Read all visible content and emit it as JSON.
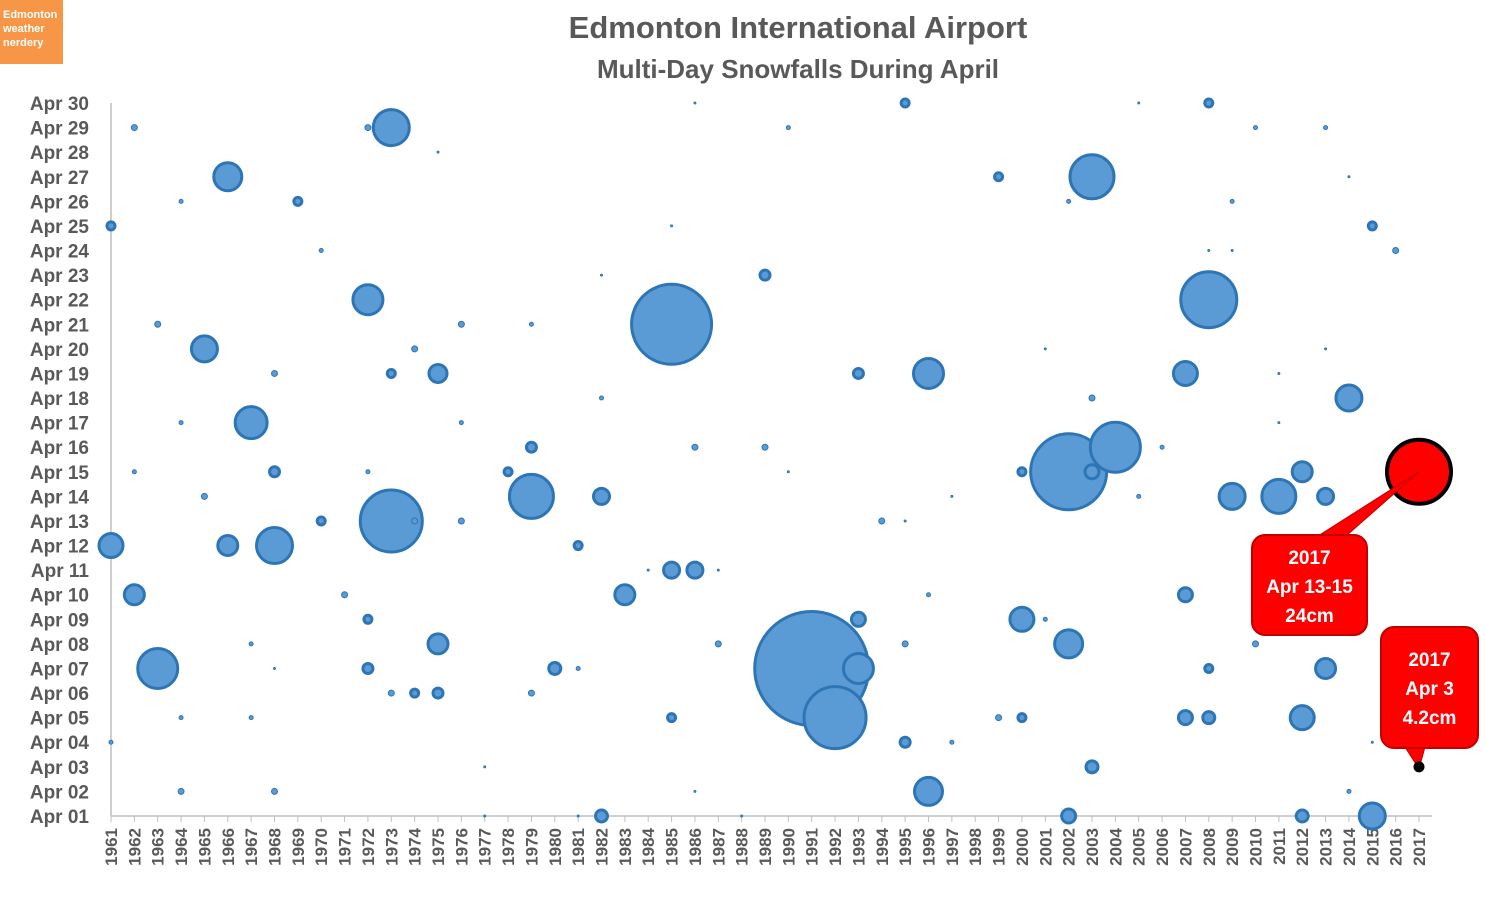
{
  "badge": {
    "lines": [
      "Edmonton",
      "weather",
      "nerdery"
    ],
    "color": "#f79646"
  },
  "chart_data": {
    "type": "bubble",
    "title": "Edmonton International Airport",
    "subtitle": "Multi-Day Snowfalls During April",
    "xlabel": "",
    "ylabel": "",
    "x_categories": [
      "1961",
      "1962",
      "1963",
      "1964",
      "1965",
      "1966",
      "1967",
      "1968",
      "1969",
      "1970",
      "1971",
      "1972",
      "1973",
      "1974",
      "1975",
      "1976",
      "1977",
      "1978",
      "1979",
      "1980",
      "1981",
      "1982",
      "1983",
      "1984",
      "1985",
      "1986",
      "1987",
      "1988",
      "1989",
      "1990",
      "1991",
      "1992",
      "1993",
      "1994",
      "1995",
      "1996",
      "1997",
      "1998",
      "1999",
      "2000",
      "2001",
      "2002",
      "2003",
      "2004",
      "2005",
      "2006",
      "2007",
      "2008",
      "2009",
      "2010",
      "2011",
      "2012",
      "2013",
      "2014",
      "2015",
      "2016",
      "2017"
    ],
    "y_categories": [
      "Apr 01",
      "Apr 02",
      "Apr 03",
      "Apr 04",
      "Apr 05",
      "Apr 06",
      "Apr 07",
      "Apr 08",
      "Apr 09",
      "Apr 10",
      "Apr 11",
      "Apr 12",
      "Apr 13",
      "Apr 14",
      "Apr 15",
      "Apr 16",
      "Apr 17",
      "Apr 18",
      "Apr 19",
      "Apr 20",
      "Apr 21",
      "Apr 22",
      "Apr 23",
      "Apr 24",
      "Apr 25",
      "Apr 26",
      "Apr 27",
      "Apr 28",
      "Apr 29",
      "Apr 30"
    ],
    "series_color": "#5b9bd5",
    "series_border": "#2e75b6",
    "highlight_color": "#ff0000",
    "bubble_note": "each point: [year, april_day, bubble_radius_px]",
    "points": [
      [
        1961,
        25,
        4
      ],
      [
        1961,
        12,
        12
      ],
      [
        1961,
        4,
        2
      ],
      [
        1962,
        29,
        3
      ],
      [
        1962,
        15,
        2
      ],
      [
        1962,
        10,
        10
      ],
      [
        1963,
        21,
        3
      ],
      [
        1963,
        7,
        20
      ],
      [
        1964,
        26,
        2
      ],
      [
        1964,
        17,
        2
      ],
      [
        1964,
        5,
        2
      ],
      [
        1964,
        2,
        3
      ],
      [
        1965,
        20,
        13
      ],
      [
        1965,
        14,
        3
      ],
      [
        1966,
        27,
        14
      ],
      [
        1966,
        12,
        10
      ],
      [
        1967,
        17,
        16
      ],
      [
        1967,
        8,
        2
      ],
      [
        1967,
        5,
        2
      ],
      [
        1968,
        19,
        3
      ],
      [
        1968,
        15,
        5
      ],
      [
        1968,
        12,
        18
      ],
      [
        1968,
        7,
        1
      ],
      [
        1968,
        2,
        3
      ],
      [
        1969,
        26,
        4
      ],
      [
        1970,
        24,
        2
      ],
      [
        1970,
        13,
        4
      ],
      [
        1971,
        10,
        3
      ],
      [
        1972,
        29,
        3
      ],
      [
        1972,
        22,
        15
      ],
      [
        1972,
        15,
        2
      ],
      [
        1972,
        9,
        4
      ],
      [
        1972,
        7,
        5
      ],
      [
        1973,
        29,
        18
      ],
      [
        1973,
        19,
        4
      ],
      [
        1973,
        13,
        31
      ],
      [
        1973,
        6,
        3
      ],
      [
        1974,
        20,
        3
      ],
      [
        1974,
        13,
        3
      ],
      [
        1974,
        6,
        4
      ],
      [
        1975,
        28,
        1
      ],
      [
        1975,
        19,
        9
      ],
      [
        1975,
        8,
        10
      ],
      [
        1975,
        6,
        5
      ],
      [
        1976,
        21,
        3
      ],
      [
        1976,
        17,
        2
      ],
      [
        1976,
        13,
        3
      ],
      [
        1977,
        3,
        1
      ],
      [
        1977,
        1,
        1
      ],
      [
        1978,
        15,
        4
      ],
      [
        1979,
        21,
        2
      ],
      [
        1979,
        16,
        5
      ],
      [
        1979,
        14,
        22
      ],
      [
        1979,
        6,
        3
      ],
      [
        1980,
        7,
        6
      ],
      [
        1981,
        12,
        4
      ],
      [
        1981,
        7,
        2
      ],
      [
        1981,
        1,
        1
      ],
      [
        1982,
        23,
        1
      ],
      [
        1982,
        18,
        2
      ],
      [
        1982,
        14,
        8
      ],
      [
        1982,
        1,
        6
      ],
      [
        1983,
        10,
        10
      ],
      [
        1984,
        11,
        1
      ],
      [
        1985,
        25,
        1
      ],
      [
        1985,
        21,
        40
      ],
      [
        1985,
        11,
        8
      ],
      [
        1985,
        5,
        4
      ],
      [
        1986,
        30,
        1
      ],
      [
        1986,
        16,
        3
      ],
      [
        1986,
        11,
        8
      ],
      [
        1986,
        2,
        1
      ],
      [
        1987,
        11,
        1
      ],
      [
        1987,
        8,
        3
      ],
      [
        1988,
        1,
        1
      ],
      [
        1989,
        23,
        5
      ],
      [
        1989,
        16,
        3
      ],
      [
        1990,
        29,
        2
      ],
      [
        1990,
        15,
        1
      ],
      [
        1991,
        7,
        57
      ],
      [
        1992,
        5,
        31
      ],
      [
        1993,
        19,
        5
      ],
      [
        1993,
        9,
        7
      ],
      [
        1993,
        7,
        15
      ],
      [
        1994,
        13,
        3
      ],
      [
        1995,
        30,
        4
      ],
      [
        1995,
        13,
        1
      ],
      [
        1995,
        8,
        3
      ],
      [
        1995,
        4,
        5
      ],
      [
        1996,
        19,
        15
      ],
      [
        1996,
        10,
        2
      ],
      [
        1996,
        2,
        14
      ],
      [
        1997,
        14,
        1
      ],
      [
        1997,
        4,
        2
      ],
      [
        1999,
        27,
        4
      ],
      [
        1999,
        5,
        3
      ],
      [
        2000,
        15,
        4
      ],
      [
        2000,
        9,
        12
      ],
      [
        2000,
        5,
        4
      ],
      [
        2001,
        20,
        1
      ],
      [
        2001,
        9,
        2
      ],
      [
        2002,
        26,
        2
      ],
      [
        2002,
        15,
        38
      ],
      [
        2002,
        8,
        14
      ],
      [
        2002,
        1,
        7
      ],
      [
        2003,
        27,
        22
      ],
      [
        2003,
        18,
        3
      ],
      [
        2003,
        15,
        7
      ],
      [
        2003,
        3,
        6
      ],
      [
        2004,
        16,
        25
      ],
      [
        2005,
        30,
        1
      ],
      [
        2005,
        14,
        2
      ],
      [
        2006,
        16,
        2
      ],
      [
        2007,
        19,
        12
      ],
      [
        2007,
        10,
        7
      ],
      [
        2007,
        5,
        7
      ],
      [
        2008,
        30,
        4
      ],
      [
        2008,
        24,
        1
      ],
      [
        2008,
        22,
        28
      ],
      [
        2008,
        7,
        4
      ],
      [
        2008,
        5,
        6
      ],
      [
        2009,
        26,
        2
      ],
      [
        2009,
        24,
        1
      ],
      [
        2009,
        14,
        13
      ],
      [
        2010,
        29,
        2
      ],
      [
        2010,
        8,
        3
      ],
      [
        2011,
        19,
        1
      ],
      [
        2011,
        17,
        1
      ],
      [
        2011,
        14,
        17
      ],
      [
        2012,
        15,
        10
      ],
      [
        2012,
        5,
        12
      ],
      [
        2012,
        1,
        6
      ],
      [
        2013,
        29,
        2
      ],
      [
        2013,
        20,
        1
      ],
      [
        2013,
        14,
        8
      ],
      [
        2013,
        7,
        10
      ],
      [
        2014,
        27,
        1
      ],
      [
        2014,
        18,
        13
      ],
      [
        2014,
        2,
        2
      ],
      [
        2015,
        25,
        4
      ],
      [
        2015,
        4,
        1
      ],
      [
        2015,
        1,
        13
      ],
      [
        2016,
        24,
        3
      ],
      [
        2017,
        15,
        32,
        "highlight"
      ],
      [
        2017,
        3,
        5,
        "highlight-small"
      ]
    ],
    "annotations": [
      {
        "lines": [
          "2017",
          "Apr 13-15",
          "24cm"
        ],
        "year": 2017,
        "day": 15
      },
      {
        "lines": [
          "2017",
          "Apr 3",
          "4.2cm"
        ],
        "year": 2017,
        "day": 3
      }
    ]
  }
}
